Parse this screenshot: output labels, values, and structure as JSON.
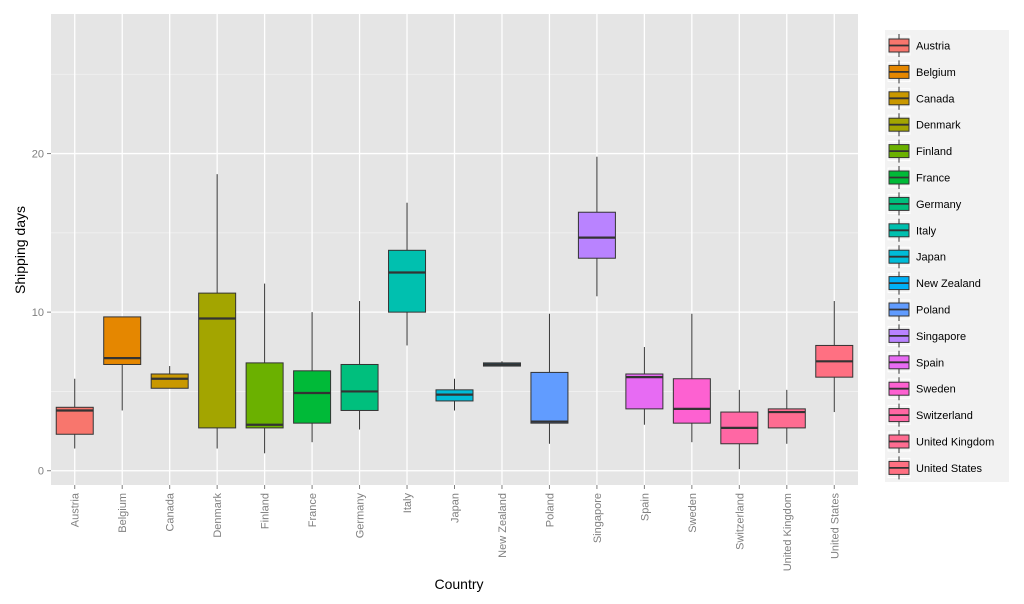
{
  "chart_data": {
    "type": "boxplot",
    "title": "",
    "xlabel": "Country",
    "ylabel": "Shipping days",
    "ylim": [
      -0.9,
      28.8
    ],
    "yticks": [
      0,
      10,
      20
    ],
    "legend_position": "right",
    "grid": true,
    "categories": [
      "Austria",
      "Belgium",
      "Canada",
      "Denmark",
      "Finland",
      "France",
      "Germany",
      "Italy",
      "Japan",
      "New Zealand",
      "Poland",
      "Singapore",
      "Spain",
      "Sweden",
      "Switzerland",
      "United Kingdom",
      "United States"
    ],
    "series": [
      {
        "name": "Austria",
        "color": "#F8766D",
        "min": 1.4,
        "q1": 2.3,
        "median": 3.8,
        "q3": 4.0,
        "max": 5.8
      },
      {
        "name": "Belgium",
        "color": "#E58700",
        "min": 3.8,
        "q1": 6.7,
        "median": 7.1,
        "q3": 9.7,
        "max": 9.7
      },
      {
        "name": "Canada",
        "color": "#C99800",
        "min": 5.2,
        "q1": 5.2,
        "median": 5.8,
        "q3": 6.1,
        "max": 6.6
      },
      {
        "name": "Denmark",
        "color": "#A3A500",
        "min": 1.4,
        "q1": 2.7,
        "median": 9.6,
        "q3": 11.2,
        "max": 18.7
      },
      {
        "name": "Finland",
        "color": "#6BB100",
        "min": 1.1,
        "q1": 2.7,
        "median": 2.9,
        "q3": 6.8,
        "max": 11.8
      },
      {
        "name": "France",
        "color": "#00BA38",
        "min": 1.8,
        "q1": 3.0,
        "median": 4.9,
        "q3": 6.3,
        "max": 10.0
      },
      {
        "name": "Germany",
        "color": "#00BF7D",
        "min": 2.6,
        "q1": 3.8,
        "median": 5.0,
        "q3": 6.7,
        "max": 10.7
      },
      {
        "name": "Italy",
        "color": "#00C0AF",
        "min": 7.9,
        "q1": 10.0,
        "median": 12.5,
        "q3": 13.9,
        "max": 16.9
      },
      {
        "name": "Japan",
        "color": "#00BCD8",
        "min": 3.8,
        "q1": 4.4,
        "median": 4.8,
        "q3": 5.1,
        "max": 5.8
      },
      {
        "name": "New Zealand",
        "color": "#00B0F6",
        "min": 6.6,
        "q1": 6.6,
        "median": 6.7,
        "q3": 6.8,
        "max": 6.9
      },
      {
        "name": "Poland",
        "color": "#619CFF",
        "min": 1.7,
        "q1": 3.0,
        "median": 3.1,
        "q3": 6.2,
        "max": 9.9
      },
      {
        "name": "Singapore",
        "color": "#B983FF",
        "min": 11.0,
        "q1": 13.4,
        "median": 14.7,
        "q3": 16.3,
        "max": 19.8
      },
      {
        "name": "Spain",
        "color": "#E76BF3",
        "min": 2.9,
        "q1": 3.9,
        "median": 5.9,
        "q3": 6.1,
        "max": 7.8
      },
      {
        "name": "Sweden",
        "color": "#FD61D1",
        "min": 1.8,
        "q1": 3.0,
        "median": 3.9,
        "q3": 5.8,
        "max": 9.9
      },
      {
        "name": "Switzerland",
        "color": "#FF67A4",
        "min": 0.1,
        "q1": 1.7,
        "median": 2.7,
        "q3": 3.7,
        "max": 5.1
      },
      {
        "name": "United Kingdom",
        "color": "#FF6C91",
        "min": 1.7,
        "q1": 2.7,
        "median": 3.7,
        "q3": 3.9,
        "max": 5.1
      },
      {
        "name": "United States",
        "color": "#FF7082",
        "min": 3.7,
        "q1": 5.9,
        "median": 6.9,
        "q3": 7.9,
        "max": 10.7
      }
    ]
  }
}
